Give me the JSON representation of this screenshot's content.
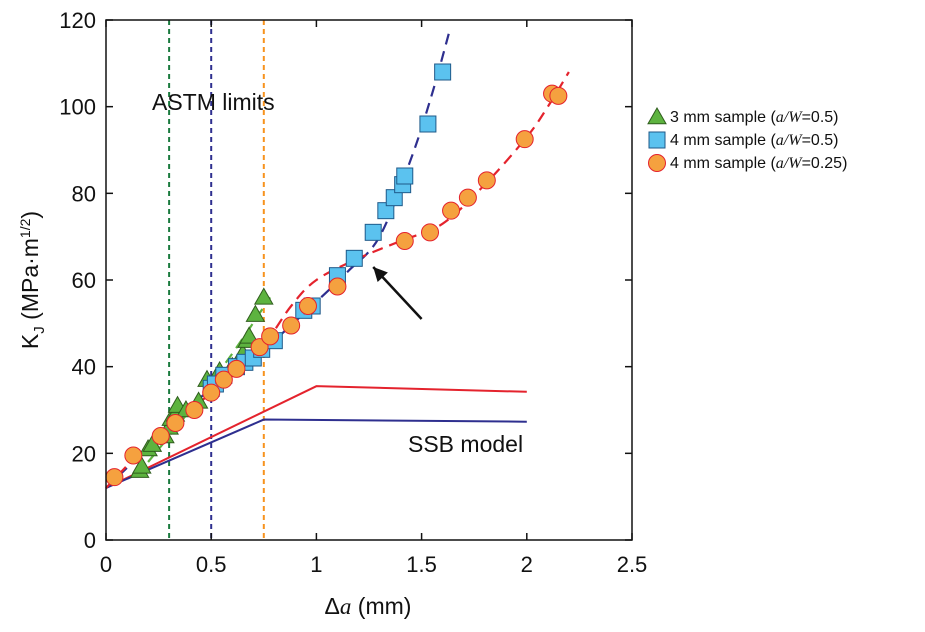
{
  "chart_data": {
    "type": "scatter",
    "xlabel_symbol": "Δ",
    "xlabel_var": "a",
    "xlabel_unit": " (mm)",
    "ylabel_main": "K",
    "ylabel_sub": "J",
    "ylabel_unit": " (MPa·m",
    "ylabel_sup": "1/2",
    "ylabel_close": ")",
    "xlim": [
      0,
      2.5
    ],
    "ylim": [
      0,
      120
    ],
    "xticks": [
      0,
      0.5,
      1,
      1.5,
      2,
      2.5
    ],
    "xtick_labels": [
      "0",
      "0.5",
      "1",
      "1.5",
      "2",
      "2.5"
    ],
    "yticks": [
      0,
      20,
      40,
      60,
      80,
      100,
      120
    ],
    "ytick_labels": [
      "0",
      "20",
      "40",
      "60",
      "80",
      "100",
      "120"
    ],
    "grid": false,
    "legend_position": "right",
    "series": [
      {
        "name_prefix": "3 mm sample (",
        "name_var": "a/W",
        "name_suffix": "=0.5)",
        "marker": "triangle",
        "color": "#5db33f",
        "points": [
          [
            0.16,
            16
          ],
          [
            0.17,
            17
          ],
          [
            0.2,
            21
          ],
          [
            0.22,
            22
          ],
          [
            0.28,
            24
          ],
          [
            0.3,
            26
          ],
          [
            0.31,
            28
          ],
          [
            0.33,
            29
          ],
          [
            0.34,
            31
          ],
          [
            0.38,
            30
          ],
          [
            0.44,
            32
          ],
          [
            0.48,
            37
          ],
          [
            0.54,
            39
          ],
          [
            0.6,
            40
          ],
          [
            0.65,
            43
          ],
          [
            0.67,
            46
          ],
          [
            0.68,
            47
          ],
          [
            0.71,
            52
          ],
          [
            0.75,
            56
          ]
        ]
      },
      {
        "name_prefix": "4 mm sample (",
        "name_var": "a/W",
        "name_suffix": "=0.5)",
        "marker": "square",
        "color": "#5bc2ef",
        "points": [
          [
            0.5,
            35
          ],
          [
            0.52,
            36
          ],
          [
            0.56,
            38
          ],
          [
            0.62,
            40
          ],
          [
            0.66,
            41
          ],
          [
            0.7,
            42
          ],
          [
            0.74,
            44
          ],
          [
            0.8,
            46
          ],
          [
            0.94,
            53
          ],
          [
            0.98,
            54
          ],
          [
            1.1,
            61
          ],
          [
            1.18,
            65
          ],
          [
            1.27,
            71
          ],
          [
            1.33,
            76
          ],
          [
            1.37,
            79
          ],
          [
            1.41,
            82
          ],
          [
            1.42,
            84
          ],
          [
            1.53,
            96
          ],
          [
            1.6,
            108
          ]
        ]
      },
      {
        "name_prefix": "4 mm sample (",
        "name_var": "a/W",
        "name_suffix": "=0.25)",
        "marker": "circle",
        "color": "#f5a13f",
        "points": [
          [
            0.04,
            14.5
          ],
          [
            0.13,
            19.5
          ],
          [
            0.26,
            24
          ],
          [
            0.33,
            27
          ],
          [
            0.42,
            30
          ],
          [
            0.5,
            34
          ],
          [
            0.56,
            37
          ],
          [
            0.62,
            39.5
          ],
          [
            0.73,
            44.5
          ],
          [
            0.78,
            47
          ],
          [
            0.88,
            49.5
          ],
          [
            0.96,
            54
          ],
          [
            1.1,
            58.5
          ],
          [
            1.42,
            69
          ],
          [
            1.54,
            71
          ],
          [
            1.64,
            76
          ],
          [
            1.72,
            79
          ],
          [
            1.81,
            83
          ],
          [
            1.99,
            92.5
          ],
          [
            2.12,
            103
          ],
          [
            2.15,
            102.5
          ]
        ]
      }
    ],
    "fit_curves": [
      {
        "color": "#5db33f",
        "points": [
          [
            0.2,
            18
          ],
          [
            0.4,
            30
          ],
          [
            0.6,
            43
          ],
          [
            0.78,
            56
          ]
        ]
      },
      {
        "color": "#2e2f8f",
        "points": [
          [
            0.0,
            12
          ],
          [
            0.3,
            26
          ],
          [
            0.5,
            35
          ],
          [
            0.75,
            44
          ],
          [
            1.0,
            55
          ],
          [
            1.15,
            62
          ],
          [
            1.3,
            70
          ],
          [
            1.45,
            88
          ],
          [
            1.55,
            103
          ],
          [
            1.63,
            117
          ]
        ]
      },
      {
        "color": "#e4232d",
        "points": [
          [
            0.0,
            12
          ],
          [
            0.2,
            22
          ],
          [
            0.4,
            30
          ],
          [
            0.6,
            38
          ],
          [
            0.75,
            45
          ],
          [
            0.88,
            54
          ],
          [
            1.0,
            60
          ],
          [
            1.2,
            65
          ],
          [
            1.4,
            69
          ],
          [
            1.6,
            73
          ],
          [
            1.8,
            82
          ],
          [
            2.0,
            93
          ],
          [
            2.1,
            100
          ],
          [
            2.2,
            108
          ]
        ]
      }
    ],
    "limit_lines": [
      {
        "x": 0.3,
        "color": "#1a7a3e"
      },
      {
        "x": 0.5,
        "color": "#2e2f8f"
      },
      {
        "x": 0.75,
        "color": "#f7931e"
      }
    ],
    "model_lines": [
      {
        "color": "#e4232d",
        "points": [
          [
            0,
            12
          ],
          [
            1.0,
            35.5
          ],
          [
            2.0,
            34.2
          ]
        ]
      },
      {
        "color": "#2e2f8f",
        "points": [
          [
            0,
            12
          ],
          [
            0.75,
            27.8
          ],
          [
            2.0,
            27.3
          ]
        ]
      }
    ],
    "arrow": {
      "from": [
        1.5,
        51
      ],
      "to": [
        1.27,
        63
      ]
    },
    "annotations": {
      "astm": "ASTM limits",
      "ssb": "SSB model"
    }
  }
}
